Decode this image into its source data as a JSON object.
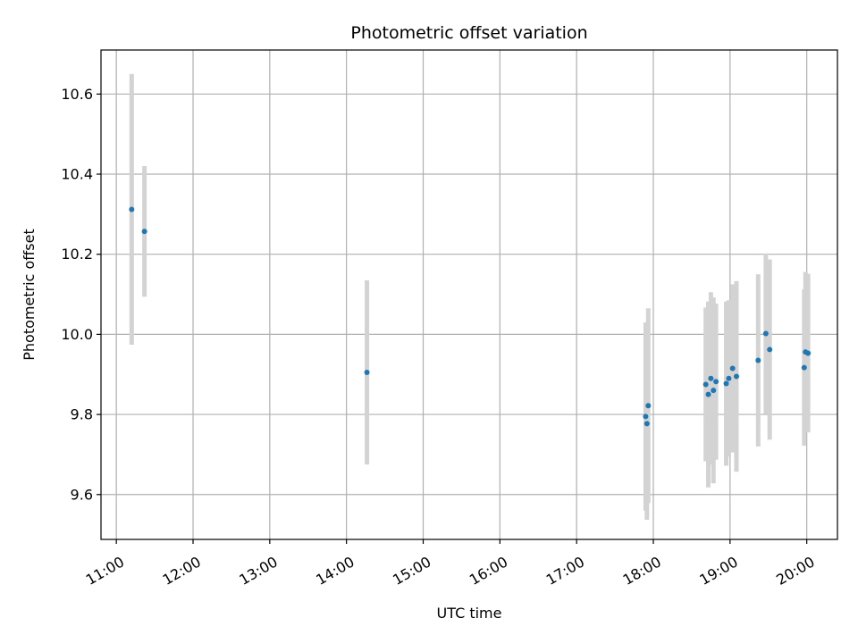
{
  "chart_data": {
    "type": "scatter",
    "title": "Photometric offset variation",
    "xlabel": "UTC time",
    "ylabel": "Photometric offset",
    "x_ticks": [
      "11:00",
      "12:00",
      "13:00",
      "14:00",
      "15:00",
      "16:00",
      "17:00",
      "18:00",
      "19:00",
      "20:00"
    ],
    "y_ticks": [
      "9.6",
      "9.8",
      "10.0",
      "10.2",
      "10.4",
      "10.6"
    ],
    "xlim": [
      "10:48",
      "20:24"
    ],
    "ylim": [
      9.488,
      10.71
    ],
    "grid": true,
    "colors": {
      "point": "#1f77b4",
      "errorbar": "#d3d3d3",
      "grid": "#b0b0b0"
    },
    "points": [
      {
        "t": "11:12",
        "y": 10.312,
        "err": 0.338
      },
      {
        "t": "11:22",
        "y": 10.257,
        "err": 0.163
      },
      {
        "t": "14:16",
        "y": 9.905,
        "err": 0.23
      },
      {
        "t": "17:54",
        "y": 9.795,
        "err": 0.235
      },
      {
        "t": "17:55",
        "y": 9.777,
        "err": 0.24
      },
      {
        "t": "17:56",
        "y": 9.822,
        "err": 0.243
      },
      {
        "t": "18:41",
        "y": 9.875,
        "err": 0.192
      },
      {
        "t": "18:43",
        "y": 9.85,
        "err": 0.232
      },
      {
        "t": "18:45",
        "y": 9.89,
        "err": 0.215
      },
      {
        "t": "18:47",
        "y": 9.86,
        "err": 0.232
      },
      {
        "t": "18:49",
        "y": 9.882,
        "err": 0.195
      },
      {
        "t": "18:57",
        "y": 9.877,
        "err": 0.205
      },
      {
        "t": "18:59",
        "y": 9.89,
        "err": 0.195
      },
      {
        "t": "19:02",
        "y": 9.915,
        "err": 0.21
      },
      {
        "t": "19:05",
        "y": 9.895,
        "err": 0.238
      },
      {
        "t": "19:22",
        "y": 9.935,
        "err": 0.215
      },
      {
        "t": "19:28",
        "y": 10.002,
        "err": 0.2
      },
      {
        "t": "19:31",
        "y": 9.962,
        "err": 0.225
      },
      {
        "t": "19:58",
        "y": 9.917,
        "err": 0.195
      },
      {
        "t": "19:59",
        "y": 9.956,
        "err": 0.2
      },
      {
        "t": "20:01",
        "y": 9.953,
        "err": 0.198
      }
    ]
  }
}
